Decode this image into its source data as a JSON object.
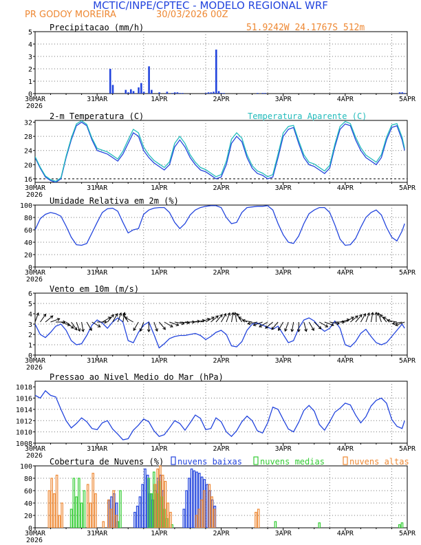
{
  "header": {
    "title": "MCTIC/INPE/CPTEC - MODELO REGIONAL WRF",
    "location": "PR GODOY MOREIRA",
    "date": "30/03/2026 00Z",
    "coords": "51.9242W 24.1767S 512m"
  },
  "colors": {
    "title": "#2244dd",
    "orange": "#ee8833",
    "blue": "#2244dd",
    "cyan": "#22bbbb",
    "green": "#33cc33",
    "black": "#000000"
  },
  "x_axis": {
    "labels": [
      "30MAR",
      "31MAR",
      "1APR",
      "2APR",
      "3APR",
      "4APR",
      "5APR"
    ],
    "year": "2026",
    "hours_total": 144
  },
  "chart_data": [
    {
      "type": "bar",
      "title": "Precipitacao (mm/h)",
      "ylim": [
        0,
        5
      ],
      "yticks": [
        0,
        1,
        2,
        3,
        4,
        5
      ],
      "x_hours": [
        29,
        30,
        35,
        36,
        37,
        38,
        40,
        41,
        42,
        44,
        45,
        48,
        51,
        53,
        54,
        55,
        56,
        57,
        66,
        67,
        68,
        69,
        70,
        71,
        72,
        73,
        86,
        88,
        89,
        141,
        142,
        143
      ],
      "values": [
        2.0,
        0.7,
        0.3,
        0.1,
        0.35,
        0.2,
        0.5,
        0.85,
        0.15,
        2.2,
        0.3,
        0.1,
        0.15,
        0.05,
        0.1,
        0.1,
        0.05,
        0.05,
        0.05,
        0.1,
        0.1,
        0.15,
        3.55,
        0.2,
        0.05,
        0.05,
        0.05,
        0.05,
        0.05,
        0.1,
        0.1,
        0.05
      ]
    },
    {
      "type": "line",
      "title": "2-m Temperatura (C)",
      "ylim": [
        15,
        32.5
      ],
      "yticks": [
        16,
        20,
        24,
        28,
        32
      ],
      "series": [
        {
          "name": "2-m Temperatura (C)",
          "color": "#2244dd",
          "x": [
            0,
            2,
            4,
            6,
            8,
            10,
            12,
            14,
            16,
            18,
            20,
            22,
            24,
            26,
            28,
            30,
            32,
            34,
            36,
            38,
            40,
            42,
            44,
            46,
            48,
            50,
            52,
            54,
            56,
            58,
            60,
            62,
            64,
            66,
            68,
            70,
            72,
            74,
            76,
            78,
            80,
            82,
            84,
            86,
            88,
            90,
            92,
            94,
            96,
            98,
            100,
            102,
            104,
            106,
            108,
            110,
            112,
            114,
            116,
            118,
            120,
            122,
            124,
            126,
            128,
            130,
            132,
            134,
            136,
            138,
            140,
            142,
            143
          ],
          "values": [
            22,
            19,
            16.5,
            15.5,
            15,
            16,
            22,
            27,
            31,
            32,
            31,
            27,
            24,
            23.5,
            23,
            22,
            21,
            23,
            26,
            29,
            28,
            24,
            22,
            20.5,
            19.5,
            18.5,
            20,
            25,
            27,
            25,
            22,
            20,
            18.5,
            18,
            17,
            16,
            16.5,
            20,
            26,
            28,
            26.5,
            22,
            19,
            17.5,
            17,
            16,
            16.5,
            22,
            28,
            30,
            30.5,
            26,
            22,
            20,
            19.5,
            18.5,
            17.5,
            19,
            25,
            30,
            31.5,
            31,
            27,
            24,
            22,
            21,
            20,
            22,
            27,
            30.5,
            31,
            27,
            24
          ]
        },
        {
          "name": "Temperatura Aparente (C)",
          "color": "#22bbbb",
          "x": [
            0,
            2,
            4,
            6,
            8,
            10,
            12,
            14,
            16,
            18,
            20,
            22,
            24,
            26,
            28,
            30,
            32,
            34,
            36,
            38,
            40,
            42,
            44,
            46,
            48,
            50,
            52,
            54,
            56,
            58,
            60,
            62,
            64,
            66,
            68,
            70,
            72,
            74,
            76,
            78,
            80,
            82,
            84,
            86,
            88,
            90,
            92,
            94,
            96,
            98,
            100,
            102,
            104,
            106,
            108,
            110,
            112,
            114,
            116,
            118,
            120,
            122,
            124,
            126,
            128,
            130,
            132,
            134,
            136,
            138,
            140,
            142,
            143
          ],
          "values": [
            22.3,
            19.3,
            16.8,
            15.8,
            15.3,
            16.3,
            22.4,
            27.5,
            31.5,
            32.4,
            31.4,
            27.5,
            24.6,
            24.1,
            23.6,
            22.6,
            21.6,
            23.8,
            27,
            30,
            29,
            25,
            22.8,
            21.2,
            20.2,
            19.2,
            20.8,
            26,
            28,
            26,
            22.8,
            20.7,
            19.2,
            18.6,
            17.6,
            16.6,
            17.2,
            21,
            27.2,
            29,
            27.5,
            22.8,
            19.7,
            18.2,
            17.6,
            16.6,
            17.2,
            23,
            29,
            30.8,
            31.1,
            26.8,
            22.8,
            20.7,
            20.2,
            19.2,
            18.2,
            19.8,
            25.8,
            30.8,
            32.2,
            31.6,
            27.8,
            24.8,
            22.7,
            21.7,
            20.7,
            22.8,
            27.8,
            31.2,
            31.6,
            27.8,
            24.6
          ]
        }
      ]
    },
    {
      "type": "line",
      "title": "Umidade Relativa em 2m (%)",
      "ylim": [
        0,
        100
      ],
      "yticks": [
        0,
        20,
        40,
        60,
        80,
        100
      ],
      "series": [
        {
          "name": "Umidade Relativa",
          "color": "#2244dd",
          "x": [
            0,
            2,
            4,
            6,
            8,
            10,
            12,
            14,
            16,
            18,
            20,
            22,
            24,
            26,
            28,
            30,
            32,
            34,
            36,
            38,
            40,
            42,
            44,
            46,
            48,
            50,
            52,
            54,
            56,
            58,
            60,
            62,
            64,
            66,
            68,
            70,
            72,
            74,
            76,
            78,
            80,
            82,
            84,
            86,
            88,
            90,
            92,
            94,
            96,
            98,
            100,
            102,
            104,
            106,
            108,
            110,
            112,
            114,
            116,
            118,
            120,
            122,
            124,
            126,
            128,
            130,
            132,
            134,
            136,
            138,
            140,
            142,
            143
          ],
          "values": [
            60,
            78,
            85,
            88,
            86,
            82,
            66,
            48,
            36,
            35,
            38,
            55,
            72,
            88,
            94,
            95,
            90,
            72,
            55,
            60,
            62,
            85,
            92,
            95,
            96,
            96,
            88,
            72,
            62,
            70,
            84,
            92,
            96,
            98,
            99,
            99,
            96,
            80,
            70,
            72,
            88,
            96,
            97,
            98,
            98,
            99,
            92,
            70,
            52,
            40,
            38,
            50,
            70,
            86,
            92,
            96,
            96,
            88,
            68,
            45,
            35,
            36,
            46,
            64,
            80,
            88,
            92,
            84,
            64,
            48,
            42,
            58,
            70
          ]
        }
      ]
    },
    {
      "type": "line",
      "title": "Vento em 10m (m/s)",
      "ylim": [
        0,
        6
      ],
      "yticks": [
        0,
        1,
        2,
        3,
        4,
        5,
        6
      ],
      "series": [
        {
          "name": "Vento em 10m",
          "color": "#2244dd",
          "x": [
            0,
            2,
            4,
            6,
            8,
            10,
            12,
            14,
            16,
            18,
            20,
            22,
            24,
            26,
            28,
            30,
            32,
            34,
            36,
            38,
            40,
            42,
            44,
            46,
            48,
            50,
            52,
            54,
            56,
            58,
            60,
            62,
            64,
            66,
            68,
            70,
            72,
            74,
            76,
            78,
            80,
            82,
            84,
            86,
            88,
            90,
            92,
            94,
            96,
            98,
            100,
            102,
            104,
            106,
            108,
            110,
            112,
            114,
            116,
            118,
            120,
            122,
            124,
            126,
            128,
            130,
            132,
            134,
            136,
            138,
            140,
            142,
            143
          ],
          "values": [
            3.0,
            2.0,
            1.7,
            2.2,
            2.8,
            3.0,
            2.4,
            1.4,
            1.0,
            1.1,
            1.9,
            2.9,
            3.4,
            3.1,
            2.6,
            3.2,
            3.6,
            3.2,
            1.4,
            1.2,
            2.2,
            2.9,
            3.2,
            2.0,
            0.7,
            1.1,
            1.6,
            1.8,
            1.9,
            1.9,
            2.0,
            2.1,
            1.9,
            1.5,
            1.8,
            2.2,
            2.4,
            2.0,
            0.9,
            0.8,
            1.3,
            2.4,
            3.0,
            3.1,
            2.9,
            2.7,
            2.5,
            2.8,
            2.0,
            1.2,
            1.4,
            2.6,
            3.4,
            3.6,
            3.3,
            2.7,
            2.3,
            2.6,
            3.3,
            2.6,
            1.0,
            0.8,
            1.3,
            2.1,
            2.5,
            1.8,
            1.2,
            1.0,
            1.2,
            1.8,
            2.4,
            3.0,
            2.6
          ]
        }
      ],
      "wind_dir_deg": [
        20,
        35,
        50,
        70,
        90,
        110,
        130,
        145,
        160,
        170,
        150,
        120,
        90,
        60,
        40,
        30,
        20,
        10,
        330,
        300,
        210,
        200,
        180,
        160,
        140,
        120,
        110,
        100,
        95,
        90,
        85,
        80,
        70,
        60,
        50,
        40,
        30,
        20,
        10,
        350,
        330,
        300,
        280,
        260,
        250,
        240,
        230,
        220,
        210,
        200,
        190,
        180,
        165,
        150,
        135,
        120,
        110,
        100,
        90,
        75,
        60,
        50,
        40,
        30,
        20,
        10,
        0,
        340,
        320,
        300,
        280,
        260,
        250
      ]
    },
    {
      "type": "line",
      "title": "Pressao ao Nivel Medio do Mar (hPa)",
      "ylim": [
        1008,
        1019
      ],
      "yticks": [
        1008,
        1010,
        1012,
        1014,
        1016,
        1018
      ],
      "series": [
        {
          "name": "Pressao",
          "color": "#2244dd",
          "x": [
            0,
            2,
            4,
            6,
            8,
            10,
            12,
            14,
            16,
            18,
            20,
            22,
            24,
            26,
            28,
            30,
            32,
            34,
            36,
            38,
            40,
            42,
            44,
            46,
            48,
            50,
            52,
            54,
            56,
            58,
            60,
            62,
            64,
            66,
            68,
            70,
            72,
            74,
            76,
            78,
            80,
            82,
            84,
            86,
            88,
            90,
            92,
            94,
            96,
            98,
            100,
            102,
            104,
            106,
            108,
            110,
            112,
            114,
            116,
            118,
            120,
            122,
            124,
            126,
            128,
            130,
            132,
            134,
            136,
            138,
            140,
            142,
            143
          ],
          "values": [
            1016.5,
            1016.0,
            1017.3,
            1016.5,
            1016.2,
            1014.0,
            1012.0,
            1010.7,
            1011.5,
            1012.5,
            1011.8,
            1010.6,
            1010.4,
            1011.6,
            1012.0,
            1010.5,
            1009.6,
            1008.6,
            1008.8,
            1010.3,
            1011.2,
            1012.3,
            1011.8,
            1010.2,
            1009.2,
            1009.5,
            1010.7,
            1012.0,
            1011.5,
            1010.3,
            1011.6,
            1013.0,
            1012.4,
            1010.4,
            1010.6,
            1012.5,
            1011.8,
            1010.0,
            1009.2,
            1010.2,
            1011.8,
            1012.8,
            1012.0,
            1010.2,
            1009.8,
            1011.6,
            1014.4,
            1014.0,
            1012.2,
            1010.5,
            1010.0,
            1011.7,
            1013.8,
            1014.7,
            1013.7,
            1011.3,
            1010.3,
            1011.8,
            1013.5,
            1014.2,
            1015.1,
            1014.8,
            1013.0,
            1011.6,
            1012.7,
            1014.6,
            1015.6,
            1016.0,
            1015.1,
            1012.2,
            1011.0,
            1010.6,
            1012.0
          ]
        }
      ]
    },
    {
      "type": "bar",
      "title": "Cobertura de Nuvens (%)",
      "ylim": [
        0,
        100
      ],
      "yticks": [
        0,
        20,
        40,
        60,
        80,
        100
      ],
      "series": [
        {
          "name": "nuvens baixas",
          "color": "#2244dd",
          "x_hours": [
            29,
            30,
            31,
            32,
            39,
            40,
            41,
            42,
            43,
            44,
            45,
            46,
            47,
            48,
            49,
            50,
            58,
            59,
            60,
            61,
            62,
            63,
            64,
            65,
            66,
            67,
            68,
            69,
            70
          ],
          "values": [
            45,
            50,
            55,
            40,
            25,
            35,
            50,
            70,
            95,
            85,
            55,
            45,
            60,
            80,
            85,
            60,
            30,
            60,
            80,
            95,
            92,
            90,
            88,
            82,
            78,
            70,
            60,
            45,
            35
          ]
        },
        {
          "name": "nuvens medias",
          "color": "#33cc33",
          "x_hours": [
            14,
            15,
            16,
            17,
            18,
            19,
            32,
            33,
            44,
            45,
            46,
            47,
            48,
            49,
            50,
            51,
            53,
            93,
            110,
            141,
            142
          ],
          "values": [
            30,
            80,
            50,
            80,
            40,
            60,
            10,
            60,
            80,
            55,
            90,
            55,
            75,
            50,
            30,
            15,
            5,
            10,
            8,
            5,
            8
          ]
        },
        {
          "name": "nuvens altas",
          "color": "#ee8833",
          "x_hours": [
            5,
            6,
            7,
            8,
            9,
            10,
            20,
            21,
            22,
            23,
            26,
            28,
            29,
            30,
            31,
            46,
            47,
            48,
            49,
            50,
            51,
            52,
            62,
            63,
            64,
            65,
            67,
            68,
            69,
            85,
            86
          ],
          "values": [
            60,
            80,
            55,
            85,
            20,
            40,
            70,
            40,
            88,
            55,
            10,
            45,
            30,
            60,
            20,
            70,
            95,
            100,
            85,
            75,
            40,
            25,
            20,
            30,
            45,
            60,
            70,
            50,
            30,
            25,
            30
          ]
        }
      ]
    }
  ]
}
